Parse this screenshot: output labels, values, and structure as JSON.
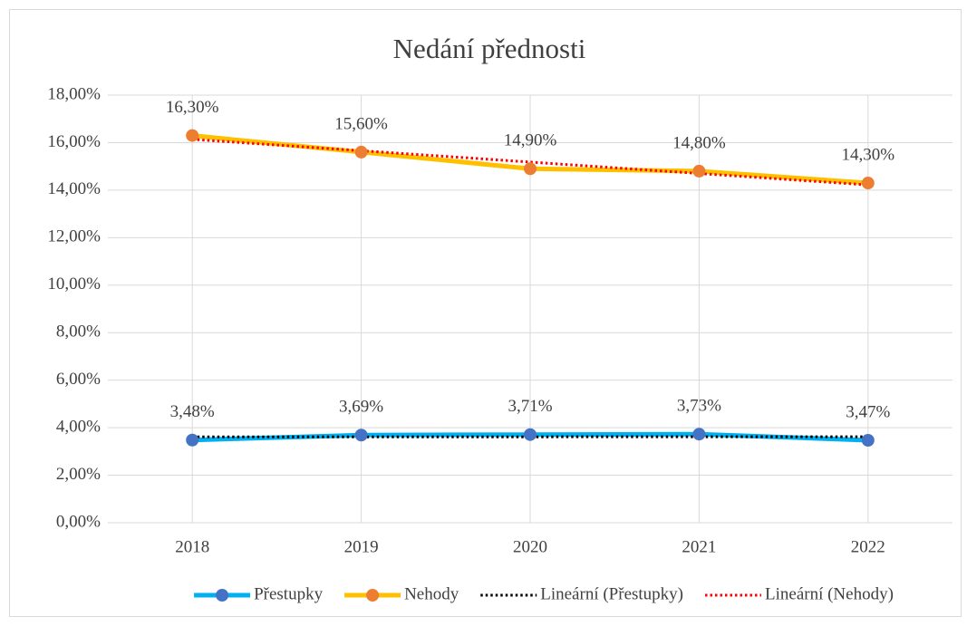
{
  "chart_data": {
    "type": "line",
    "title": "Nedání přednosti",
    "categories": [
      "2018",
      "2019",
      "2020",
      "2021",
      "2022"
    ],
    "series": [
      {
        "name": "Přestupky",
        "color": "#00b0f0",
        "marker_color": "#4472c4",
        "values": [
          3.48,
          3.69,
          3.71,
          3.73,
          3.47
        ],
        "value_labels": [
          "3,48%",
          "3,69%",
          "3,71%",
          "3,73%",
          "3,47%"
        ]
      },
      {
        "name": "Nehody",
        "color": "#ffc000",
        "marker_color": "#ed7d31",
        "values": [
          16.3,
          15.6,
          14.9,
          14.8,
          14.3
        ],
        "value_labels": [
          "16,30%",
          "15,60%",
          "14,90%",
          "14,80%",
          "14,30%"
        ]
      },
      {
        "name": "Lineární (Přestupky)",
        "color": "#000000",
        "style": "dotted",
        "values": [
          3.612,
          3.614,
          3.616,
          3.618,
          3.62
        ]
      },
      {
        "name": "Lineární (Nehody)",
        "color": "#ff0000",
        "style": "dotted",
        "values": [
          16.14,
          15.66,
          15.18,
          14.7,
          14.22
        ]
      }
    ],
    "ylim": [
      0,
      18
    ],
    "yticks": [
      {
        "value": 0,
        "label": "0,00%"
      },
      {
        "value": 2,
        "label": "2,00%"
      },
      {
        "value": 4,
        "label": "4,00%"
      },
      {
        "value": 6,
        "label": "6,00%"
      },
      {
        "value": 8,
        "label": "8,00%"
      },
      {
        "value": 10,
        "label": "10,00%"
      },
      {
        "value": 12,
        "label": "12,00%"
      },
      {
        "value": 14,
        "label": "14,00%"
      },
      {
        "value": 16,
        "label": "16,00%"
      },
      {
        "value": 18,
        "label": "18,00%"
      }
    ],
    "grid": true,
    "legend": "bottom"
  }
}
